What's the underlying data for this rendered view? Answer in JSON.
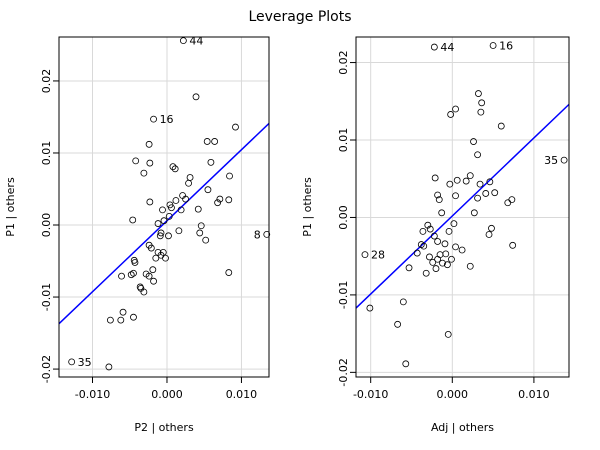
{
  "chart_data": {
    "type": "scatter",
    "title": "Leverage Plots",
    "panels": [
      {
        "xlabel": "P2 | others",
        "ylabel": "P1 | others",
        "xlim": [
          -0.0145,
          0.0137
        ],
        "ylim": [
          -0.0211,
          0.0261
        ],
        "xticks": [
          -0.01,
          0.0,
          0.01
        ],
        "xtick_labels": [
          "-0.010",
          "0.000",
          "0.010"
        ],
        "yticks": [
          -0.02,
          -0.01,
          0.0,
          0.01,
          0.02
        ],
        "ytick_labels": [
          "-0.02",
          "-0.01",
          "0.00",
          "0.01",
          "0.02"
        ],
        "grid": true,
        "line_color": "#0000ff",
        "fit_line": {
          "x": [
            -0.0145,
            0.0137
          ],
          "y": [
            -0.0137,
            0.0141
          ]
        },
        "points": [
          {
            "x": 0.0022,
            "y": 0.0256,
            "label": "44"
          },
          {
            "x": -0.0018,
            "y": 0.0147,
            "label": "16"
          },
          {
            "x": 0.0134,
            "y": -0.0013,
            "label": "8"
          },
          {
            "x": -0.0128,
            "y": -0.019,
            "label": "35"
          },
          {
            "x": -0.0078,
            "y": -0.0197,
            "label": ""
          },
          {
            "x": -0.0076,
            "y": -0.0132,
            "label": ""
          },
          {
            "x": -0.0062,
            "y": -0.0132,
            "label": ""
          },
          {
            "x": -0.0059,
            "y": -0.0121,
            "label": ""
          },
          {
            "x": -0.0045,
            "y": -0.0128,
            "label": ""
          },
          {
            "x": -0.0061,
            "y": -0.0071,
            "label": ""
          },
          {
            "x": -0.0048,
            "y": -0.0069,
            "label": ""
          },
          {
            "x": -0.0045,
            "y": -0.0067,
            "label": ""
          },
          {
            "x": -0.0044,
            "y": -0.0049,
            "label": ""
          },
          {
            "x": -0.0043,
            "y": -0.0052,
            "label": ""
          },
          {
            "x": -0.0036,
            "y": -0.0086,
            "label": ""
          },
          {
            "x": -0.0035,
            "y": -0.0088,
            "label": ""
          },
          {
            "x": -0.0031,
            "y": -0.0093,
            "label": ""
          },
          {
            "x": -0.0028,
            "y": -0.0068,
            "label": ""
          },
          {
            "x": -0.0024,
            "y": -0.0071,
            "label": ""
          },
          {
            "x": -0.0019,
            "y": -0.0062,
            "label": ""
          },
          {
            "x": -0.0018,
            "y": -0.0078,
            "label": ""
          },
          {
            "x": -0.0024,
            "y": -0.0028,
            "label": ""
          },
          {
            "x": -0.0021,
            "y": -0.0032,
            "label": ""
          },
          {
            "x": -0.0015,
            "y": -0.0046,
            "label": ""
          },
          {
            "x": -0.0012,
            "y": -0.0038,
            "label": ""
          },
          {
            "x": -0.0008,
            "y": -0.0042,
            "label": ""
          },
          {
            "x": -0.0005,
            "y": -0.0038,
            "label": ""
          },
          {
            "x": -0.0002,
            "y": -0.0046,
            "label": ""
          },
          {
            "x": -0.0042,
            "y": 0.0089,
            "label": ""
          },
          {
            "x": -0.0024,
            "y": 0.0112,
            "label": ""
          },
          {
            "x": -0.0023,
            "y": 0.0086,
            "label": ""
          },
          {
            "x": -0.0031,
            "y": 0.0072,
            "label": ""
          },
          {
            "x": -0.0046,
            "y": 0.0007,
            "label": ""
          },
          {
            "x": -0.0023,
            "y": 0.0032,
            "label": ""
          },
          {
            "x": -0.0012,
            "y": 0.0002,
            "label": ""
          },
          {
            "x": -0.0006,
            "y": 0.0021,
            "label": ""
          },
          {
            "x": -0.0004,
            "y": 0.0006,
            "label": ""
          },
          {
            "x": -0.0008,
            "y": -0.0011,
            "label": ""
          },
          {
            "x": -0.0009,
            "y": -0.0015,
            "label": ""
          },
          {
            "x": 0.0002,
            "y": -0.0015,
            "label": ""
          },
          {
            "x": 0.0004,
            "y": 0.0028,
            "label": ""
          },
          {
            "x": 0.0006,
            "y": 0.0024,
            "label": ""
          },
          {
            "x": 0.0003,
            "y": 0.0012,
            "label": ""
          },
          {
            "x": 0.0008,
            "y": 0.0081,
            "label": ""
          },
          {
            "x": 0.0011,
            "y": 0.0078,
            "label": ""
          },
          {
            "x": 0.0012,
            "y": 0.0034,
            "label": ""
          },
          {
            "x": 0.0016,
            "y": -0.0008,
            "label": ""
          },
          {
            "x": 0.0019,
            "y": 0.0021,
            "label": ""
          },
          {
            "x": 0.0021,
            "y": 0.0041,
            "label": ""
          },
          {
            "x": 0.0025,
            "y": 0.0036,
            "label": ""
          },
          {
            "x": 0.0029,
            "y": 0.0058,
            "label": ""
          },
          {
            "x": 0.0031,
            "y": 0.0066,
            "label": ""
          },
          {
            "x": 0.0039,
            "y": 0.0178,
            "label": ""
          },
          {
            "x": 0.0042,
            "y": 0.0022,
            "label": ""
          },
          {
            "x": 0.0046,
            "y": -0.0001,
            "label": ""
          },
          {
            "x": 0.0044,
            "y": -0.0011,
            "label": ""
          },
          {
            "x": 0.0054,
            "y": 0.0116,
            "label": ""
          },
          {
            "x": 0.0059,
            "y": 0.0087,
            "label": ""
          },
          {
            "x": 0.0055,
            "y": 0.0049,
            "label": ""
          },
          {
            "x": 0.0052,
            "y": -0.0021,
            "label": ""
          },
          {
            "x": 0.0064,
            "y": 0.0116,
            "label": ""
          },
          {
            "x": 0.0071,
            "y": 0.0036,
            "label": ""
          },
          {
            "x": 0.0068,
            "y": 0.0031,
            "label": ""
          },
          {
            "x": 0.0084,
            "y": 0.0068,
            "label": ""
          },
          {
            "x": 0.0083,
            "y": 0.0035,
            "label": ""
          },
          {
            "x": 0.0092,
            "y": 0.0136,
            "label": ""
          },
          {
            "x": 0.0083,
            "y": -0.0066,
            "label": ""
          }
        ]
      },
      {
        "xlabel": "Adj | others",
        "ylabel": "P1 | others",
        "xlim": [
          -0.0118,
          0.0143
        ],
        "ylim": [
          -0.0206,
          0.0233
        ],
        "xticks": [
          -0.01,
          0.0,
          0.01
        ],
        "xtick_labels": [
          "-0.010",
          "0.000",
          "0.010"
        ],
        "yticks": [
          -0.02,
          -0.01,
          0.0,
          0.01,
          0.02
        ],
        "ytick_labels": [
          "-0.02",
          "-0.01",
          "0.00",
          "0.01",
          "0.02"
        ],
        "grid": true,
        "line_color": "#0000ff",
        "fit_line": {
          "x": [
            -0.0118,
            0.0143
          ],
          "y": [
            -0.0117,
            0.0146
          ]
        },
        "points": [
          {
            "x": -0.0022,
            "y": 0.022,
            "label": "44"
          },
          {
            "x": 0.005,
            "y": 0.0222,
            "label": "16"
          },
          {
            "x": 0.0137,
            "y": 0.0074,
            "label": "35"
          },
          {
            "x": -0.0107,
            "y": -0.0048,
            "label": "28"
          },
          {
            "x": -0.0101,
            "y": -0.0117,
            "label": ""
          },
          {
            "x": -0.0057,
            "y": -0.0189,
            "label": ""
          },
          {
            "x": -0.0067,
            "y": -0.0138,
            "label": ""
          },
          {
            "x": -0.006,
            "y": -0.0109,
            "label": ""
          },
          {
            "x": -0.0043,
            "y": -0.0046,
            "label": ""
          },
          {
            "x": -0.0053,
            "y": -0.0065,
            "label": ""
          },
          {
            "x": -0.0035,
            "y": -0.0037,
            "label": ""
          },
          {
            "x": -0.0032,
            "y": -0.0072,
            "label": ""
          },
          {
            "x": -0.0028,
            "y": -0.0051,
            "label": ""
          },
          {
            "x": -0.0024,
            "y": -0.0058,
            "label": ""
          },
          {
            "x": -0.002,
            "y": -0.0066,
            "label": ""
          },
          {
            "x": -0.0018,
            "y": -0.0054,
            "label": ""
          },
          {
            "x": -0.0015,
            "y": -0.0048,
            "label": ""
          },
          {
            "x": -0.0012,
            "y": -0.0059,
            "label": ""
          },
          {
            "x": -0.0008,
            "y": -0.0047,
            "label": ""
          },
          {
            "x": -0.0006,
            "y": -0.0061,
            "label": ""
          },
          {
            "x": -0.0005,
            "y": -0.0151,
            "label": ""
          },
          {
            "x": -0.0001,
            "y": -0.0054,
            "label": ""
          },
          {
            "x": 0.0004,
            "y": -0.0038,
            "label": ""
          },
          {
            "x": 0.0012,
            "y": -0.0042,
            "label": ""
          },
          {
            "x": 0.0022,
            "y": -0.0063,
            "label": ""
          },
          {
            "x": -0.0038,
            "y": -0.0035,
            "label": ""
          },
          {
            "x": -0.0036,
            "y": -0.0018,
            "label": ""
          },
          {
            "x": -0.003,
            "y": -0.001,
            "label": ""
          },
          {
            "x": -0.0027,
            "y": -0.0015,
            "label": ""
          },
          {
            "x": -0.0022,
            "y": -0.0024,
            "label": ""
          },
          {
            "x": -0.0018,
            "y": -0.0031,
            "label": ""
          },
          {
            "x": -0.0013,
            "y": 0.0006,
            "label": ""
          },
          {
            "x": -0.0009,
            "y": -0.0034,
            "label": ""
          },
          {
            "x": -0.0004,
            "y": -0.0018,
            "label": ""
          },
          {
            "x": 0.0002,
            "y": -0.0008,
            "label": ""
          },
          {
            "x": -0.0021,
            "y": 0.0051,
            "label": ""
          },
          {
            "x": -0.0018,
            "y": 0.0029,
            "label": ""
          },
          {
            "x": -0.0016,
            "y": 0.0023,
            "label": ""
          },
          {
            "x": -0.0003,
            "y": 0.0043,
            "label": ""
          },
          {
            "x": 0.0004,
            "y": 0.0028,
            "label": ""
          },
          {
            "x": 0.0006,
            "y": 0.0048,
            "label": ""
          },
          {
            "x": 0.0017,
            "y": 0.0047,
            "label": ""
          },
          {
            "x": 0.0022,
            "y": 0.0054,
            "label": ""
          },
          {
            "x": 0.0027,
            "y": 0.0006,
            "label": ""
          },
          {
            "x": 0.0031,
            "y": 0.0025,
            "label": ""
          },
          {
            "x": 0.0034,
            "y": 0.0043,
            "label": ""
          },
          {
            "x": 0.0041,
            "y": 0.0031,
            "label": ""
          },
          {
            "x": 0.0046,
            "y": 0.0046,
            "label": ""
          },
          {
            "x": 0.0052,
            "y": 0.0032,
            "label": ""
          },
          {
            "x": 0.0048,
            "y": -0.0014,
            "label": ""
          },
          {
            "x": 0.0045,
            "y": -0.0022,
            "label": ""
          },
          {
            "x": -0.0002,
            "y": 0.0133,
            "label": ""
          },
          {
            "x": 0.0004,
            "y": 0.014,
            "label": ""
          },
          {
            "x": 0.0026,
            "y": 0.0098,
            "label": ""
          },
          {
            "x": 0.0031,
            "y": 0.0081,
            "label": ""
          },
          {
            "x": 0.0032,
            "y": 0.016,
            "label": ""
          },
          {
            "x": 0.0036,
            "y": 0.0148,
            "label": ""
          },
          {
            "x": 0.0035,
            "y": 0.0136,
            "label": ""
          },
          {
            "x": 0.006,
            "y": 0.0118,
            "label": ""
          },
          {
            "x": 0.0068,
            "y": 0.0019,
            "label": ""
          },
          {
            "x": 0.0073,
            "y": 0.0023,
            "label": ""
          },
          {
            "x": 0.0074,
            "y": -0.0036,
            "label": ""
          }
        ]
      }
    ]
  }
}
